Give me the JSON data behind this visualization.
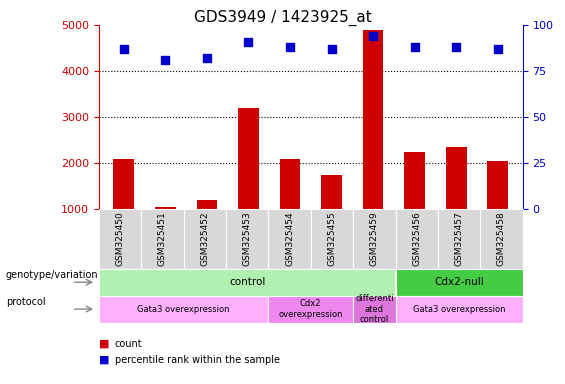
{
  "title": "GDS3949 / 1423925_at",
  "samples": [
    "GSM325450",
    "GSM325451",
    "GSM325452",
    "GSM325453",
    "GSM325454",
    "GSM325455",
    "GSM325459",
    "GSM325456",
    "GSM325457",
    "GSM325458"
  ],
  "counts": [
    2100,
    1050,
    1200,
    3200,
    2100,
    1750,
    4900,
    2250,
    2350,
    2050
  ],
  "percentile_ranks": [
    87,
    81,
    82,
    91,
    88,
    87,
    94,
    88,
    88,
    87
  ],
  "count_color": "#cc0000",
  "percentile_color": "#0000cc",
  "ylim_left": [
    1000,
    5000
  ],
  "ylim_right": [
    0,
    100
  ],
  "yticks_left": [
    1000,
    2000,
    3000,
    4000,
    5000
  ],
  "yticks_right": [
    0,
    25,
    50,
    75,
    100
  ],
  "bar_bottom": 1000,
  "genotype_groups": [
    {
      "label": "control",
      "start": 0,
      "end": 7,
      "color": "#b0f0b0"
    },
    {
      "label": "Cdx2-null",
      "start": 7,
      "end": 10,
      "color": "#44cc44"
    }
  ],
  "protocol_groups": [
    {
      "label": "Gata3 overexpression",
      "start": 0,
      "end": 4,
      "color": "#ffb0ff"
    },
    {
      "label": "Cdx2\noverexpression",
      "start": 4,
      "end": 6,
      "color": "#ee88ee"
    },
    {
      "label": "differenti\nated\ncontrol",
      "start": 6,
      "end": 7,
      "color": "#dd77dd"
    },
    {
      "label": "Gata3 overexpression",
      "start": 7,
      "end": 10,
      "color": "#ffb0ff"
    }
  ],
  "left_label_color": "#cc0000",
  "right_label_color": "#0000cc",
  "cell_bg_color": "#d8d8d8",
  "cell_edge_color": "#ffffff"
}
